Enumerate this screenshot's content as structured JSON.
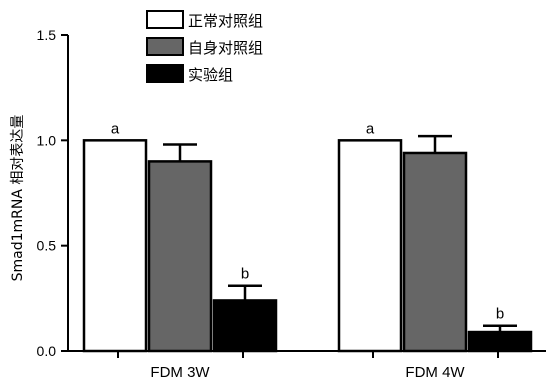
{
  "chart_data": {
    "type": "bar",
    "categories": [
      "FDM 3W",
      "FDM 4W"
    ],
    "ylabel": "Smad1mRNA 相对表达量",
    "ylim": [
      0,
      1.5
    ],
    "yticks": [
      "0.0",
      "0.5",
      "1.0",
      "1.5"
    ],
    "legend_position": "top-left",
    "series": [
      {
        "name": "正常对照组",
        "color": "#ffffff",
        "values": [
          1.0,
          1.0
        ],
        "errors": [
          0,
          0
        ],
        "labels": [
          "a",
          "a"
        ]
      },
      {
        "name": "自身对照组",
        "color": "#666666",
        "values": [
          0.9,
          0.94
        ],
        "errors": [
          0.08,
          0.08
        ],
        "labels": [
          "",
          ""
        ]
      },
      {
        "name": "实验组",
        "color": "#000000",
        "values": [
          0.24,
          0.09
        ],
        "errors": [
          0.07,
          0.03
        ],
        "labels": [
          "b",
          "b"
        ]
      }
    ]
  }
}
